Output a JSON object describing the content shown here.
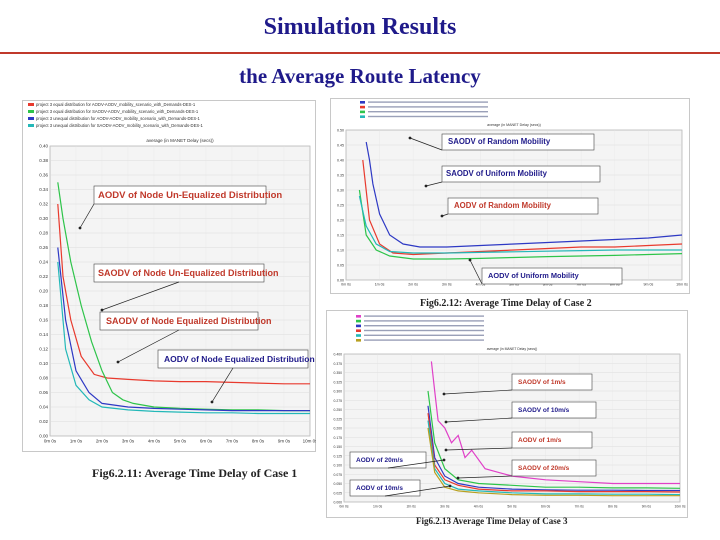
{
  "slide": {
    "title": "Simulation Results",
    "subtitle": "the Average Route Latency"
  },
  "chart_data": [
    {
      "id": "case1",
      "type": "line",
      "caption": "Fig6.2.11: Average Time Delay of Case 1",
      "legend": [
        "project 3 equal distribution for AODV-AODV_mobility_scenario_with_Demands-DES-1",
        "project 3 equal distribution for SAODV-AODV_mobility_scenario_with_Demands-DES-1",
        "project 3 unequal distribution for AODV-AODV_mobility_scenario_with_Demands-DES-1",
        "project 3 unequal distribution for SAODV-AODV_mobility_scenario_with_Demands-DES-1"
      ],
      "plot_title": "average (in MANET Delay (secs))",
      "y_ticks": [
        "0.00",
        "0.02",
        "0.04",
        "0.06",
        "0.08",
        "0.10",
        "0.12",
        "0.14",
        "0.16",
        "0.18",
        "0.20",
        "0.22",
        "0.24",
        "0.26",
        "0.28",
        "0.30",
        "0.32",
        "0.34",
        "0.36",
        "0.38",
        "0.40"
      ],
      "x_ticks": [
        "0m 0s",
        "1m 0s",
        "2m 0s",
        "3m 0s",
        "4m 0s",
        "5m 0s",
        "6m 0s",
        "7m 0s",
        "8m 0s",
        "9m 0s",
        "10m 0s"
      ],
      "ylim": [
        0,
        0.4
      ],
      "xlim": [
        0,
        10
      ],
      "series": [
        {
          "color": "#e83a2e",
          "x": [
            0.3,
            0.5,
            0.8,
            1.2,
            1.7,
            2.2,
            3,
            4,
            5,
            6,
            7,
            8,
            9,
            10
          ],
          "y": [
            0.32,
            0.22,
            0.16,
            0.11,
            0.085,
            0.08,
            0.078,
            0.076,
            0.075,
            0.075,
            0.074,
            0.073,
            0.072,
            0.072
          ]
        },
        {
          "color": "#2ec44a",
          "x": [
            0.3,
            0.5,
            0.8,
            1.2,
            1.6,
            2,
            2.4,
            2.8,
            3.2,
            4,
            5,
            6,
            7,
            8,
            9,
            10
          ],
          "y": [
            0.35,
            0.3,
            0.24,
            0.18,
            0.13,
            0.09,
            0.06,
            0.05,
            0.045,
            0.04,
            0.038,
            0.037,
            0.036,
            0.036,
            0.035,
            0.035
          ]
        },
        {
          "color": "#2e39c4",
          "x": [
            0.3,
            0.6,
            1,
            1.5,
            2,
            3,
            4,
            5,
            6,
            7,
            8,
            9,
            10
          ],
          "y": [
            0.26,
            0.16,
            0.09,
            0.06,
            0.045,
            0.04,
            0.038,
            0.037,
            0.036,
            0.035,
            0.035,
            0.035,
            0.035
          ]
        },
        {
          "color": "#23b8b8",
          "x": [
            0.3,
            0.6,
            1,
            1.5,
            2,
            3,
            4,
            5,
            6,
            7,
            8,
            9,
            10
          ],
          "y": [
            0.24,
            0.12,
            0.07,
            0.05,
            0.04,
            0.036,
            0.034,
            0.033,
            0.032,
            0.032,
            0.031,
            0.031,
            0.031
          ]
        }
      ],
      "annotations": [
        {
          "text": "AODV of Node Un-Equalized Distribution",
          "color": "#c0392b"
        },
        {
          "text": "SAODV of Node Un-Equalized Distribution",
          "color": "#c0392b"
        },
        {
          "text": "SAODV of Node Equalized Distribution",
          "color": "#c0392b"
        },
        {
          "text": "AODV of Node Equalized Distribution",
          "color": "#1f1a8a"
        }
      ]
    },
    {
      "id": "case2",
      "type": "line",
      "caption": "Fig6.2.12: Average Time Delay of Case 2",
      "plot_title": "average (in MANET Delay (secs))",
      "ylim": [
        0,
        0.5
      ],
      "xlim": [
        0,
        10
      ],
      "y_ticks": [
        "0.00",
        "0.05",
        "0.10",
        "0.15",
        "0.20",
        "0.25",
        "0.30",
        "0.35",
        "0.40",
        "0.45",
        "0.50"
      ],
      "x_ticks": [
        "0m 0s",
        "1m 0s",
        "2m 0s",
        "3m 0s",
        "4m 0s",
        "5m 0s",
        "6m 0s",
        "7m 0s",
        "8m 0s",
        "9m 0s",
        "10m 0s"
      ],
      "series": [
        {
          "color": "#2e39c4",
          "x": [
            0.6,
            0.7,
            0.8,
            1,
            1.3,
            1.7,
            2.2,
            3,
            4,
            5,
            6,
            7,
            8,
            9,
            10
          ],
          "y": [
            0.46,
            0.4,
            0.32,
            0.22,
            0.15,
            0.12,
            0.11,
            0.11,
            0.115,
            0.12,
            0.125,
            0.13,
            0.135,
            0.14,
            0.15
          ]
        },
        {
          "color": "#e83a2e",
          "x": [
            0.5,
            0.7,
            1,
            1.4,
            2,
            3,
            4,
            5,
            6,
            7,
            8,
            9,
            10
          ],
          "y": [
            0.4,
            0.2,
            0.12,
            0.09,
            0.085,
            0.09,
            0.095,
            0.1,
            0.105,
            0.11,
            0.11,
            0.115,
            0.12
          ]
        },
        {
          "color": "#2ec44a",
          "x": [
            0.4,
            0.6,
            0.9,
            1.3,
            2,
            3,
            4,
            5,
            6,
            7,
            8,
            9,
            10
          ],
          "y": [
            0.3,
            0.15,
            0.1,
            0.08,
            0.07,
            0.07,
            0.072,
            0.075,
            0.078,
            0.08,
            0.082,
            0.085,
            0.088
          ]
        },
        {
          "color": "#23b8b8",
          "x": [
            0.4,
            0.6,
            0.9,
            1.3,
            2,
            3,
            4,
            5,
            6,
            7,
            8,
            9,
            10
          ],
          "y": [
            0.28,
            0.18,
            0.12,
            0.095,
            0.09,
            0.09,
            0.092,
            0.094,
            0.096,
            0.098,
            0.1,
            0.1,
            0.1
          ]
        }
      ],
      "annotations": [
        {
          "text": "SAODV of Random Mobility",
          "color": "#1f1a8a"
        },
        {
          "text": "SAODV of Uniform Mobility",
          "color": "#1f1a8a"
        },
        {
          "text": "AODV of Random Mobility",
          "color": "#c0392b"
        },
        {
          "text": "AODV of Uniform Mobility",
          "color": "#1f1a8a"
        }
      ]
    },
    {
      "id": "case3",
      "type": "line",
      "caption": "Fig6.2.13 Average Time Delay of Case 3",
      "plot_title": "average (in MANET Delay (secs))",
      "ylim": [
        0,
        0.4
      ],
      "xlim": [
        0,
        10
      ],
      "y_ticks": [
        "0.000",
        "0.025",
        "0.050",
        "0.075",
        "0.100",
        "0.125",
        "0.150",
        "0.175",
        "0.200",
        "0.225",
        "0.250",
        "0.275",
        "0.300",
        "0.325",
        "0.350",
        "0.375",
        "0.400"
      ],
      "x_ticks": [
        "0m 0s",
        "1m 0s",
        "2m 0s",
        "3m 0s",
        "4m 0s",
        "5m 0s",
        "6m 0s",
        "7m 0s",
        "8m 0s",
        "9m 0s",
        "10m 0s"
      ],
      "series": [
        {
          "color": "#e040c8",
          "x": [
            2.6,
            2.7,
            2.8,
            3,
            3.2,
            3.4,
            3.6,
            3.8,
            4.2,
            4.6,
            5,
            6,
            7,
            8,
            9,
            10
          ],
          "y": [
            0.38,
            0.3,
            0.22,
            0.2,
            0.16,
            0.18,
            0.12,
            0.14,
            0.09,
            0.08,
            0.07,
            0.06,
            0.055,
            0.05,
            0.05,
            0.05
          ]
        },
        {
          "color": "#2ec44a",
          "x": [
            2.5,
            2.7,
            3,
            3.4,
            4,
            5,
            6,
            7,
            8,
            9,
            10
          ],
          "y": [
            0.3,
            0.16,
            0.09,
            0.06,
            0.05,
            0.045,
            0.04,
            0.04,
            0.038,
            0.038,
            0.037
          ]
        },
        {
          "color": "#2e39c4",
          "x": [
            2.5,
            2.7,
            3,
            3.4,
            4,
            5,
            6,
            7,
            8,
            9,
            10
          ],
          "y": [
            0.26,
            0.12,
            0.07,
            0.05,
            0.04,
            0.035,
            0.033,
            0.032,
            0.032,
            0.031,
            0.031
          ]
        },
        {
          "color": "#e83a2e",
          "x": [
            2.5,
            2.7,
            3,
            3.4,
            4,
            5,
            6,
            7,
            8,
            9,
            10
          ],
          "y": [
            0.24,
            0.1,
            0.06,
            0.045,
            0.035,
            0.03,
            0.03,
            0.028,
            0.028,
            0.028,
            0.027
          ]
        },
        {
          "color": "#23b8b8",
          "x": [
            2.5,
            2.7,
            3,
            3.4,
            4,
            5,
            6,
            7,
            8,
            9,
            10
          ],
          "y": [
            0.22,
            0.09,
            0.05,
            0.035,
            0.03,
            0.025,
            0.022,
            0.022,
            0.021,
            0.021,
            0.02
          ]
        },
        {
          "color": "#b8a020",
          "x": [
            2.5,
            2.7,
            3,
            3.4,
            4,
            5,
            6,
            7,
            8,
            9,
            10
          ],
          "y": [
            0.2,
            0.08,
            0.04,
            0.03,
            0.025,
            0.02,
            0.018,
            0.018,
            0.017,
            0.017,
            0.017
          ]
        }
      ],
      "annotations": [
        {
          "text": "SAODV of 1m/s",
          "color": "#c0392b"
        },
        {
          "text": "SAODV of 10m/s",
          "color": "#1f1a8a"
        },
        {
          "text": "AODV of 1m/s",
          "color": "#c0392b"
        },
        {
          "text": "AODV of 20m/s",
          "color": "#1f1a8a"
        },
        {
          "text": "SAODV of 20m/s",
          "color": "#c0392b"
        },
        {
          "text": "AODV of 10m/s",
          "color": "#1f1a8a"
        }
      ]
    }
  ]
}
